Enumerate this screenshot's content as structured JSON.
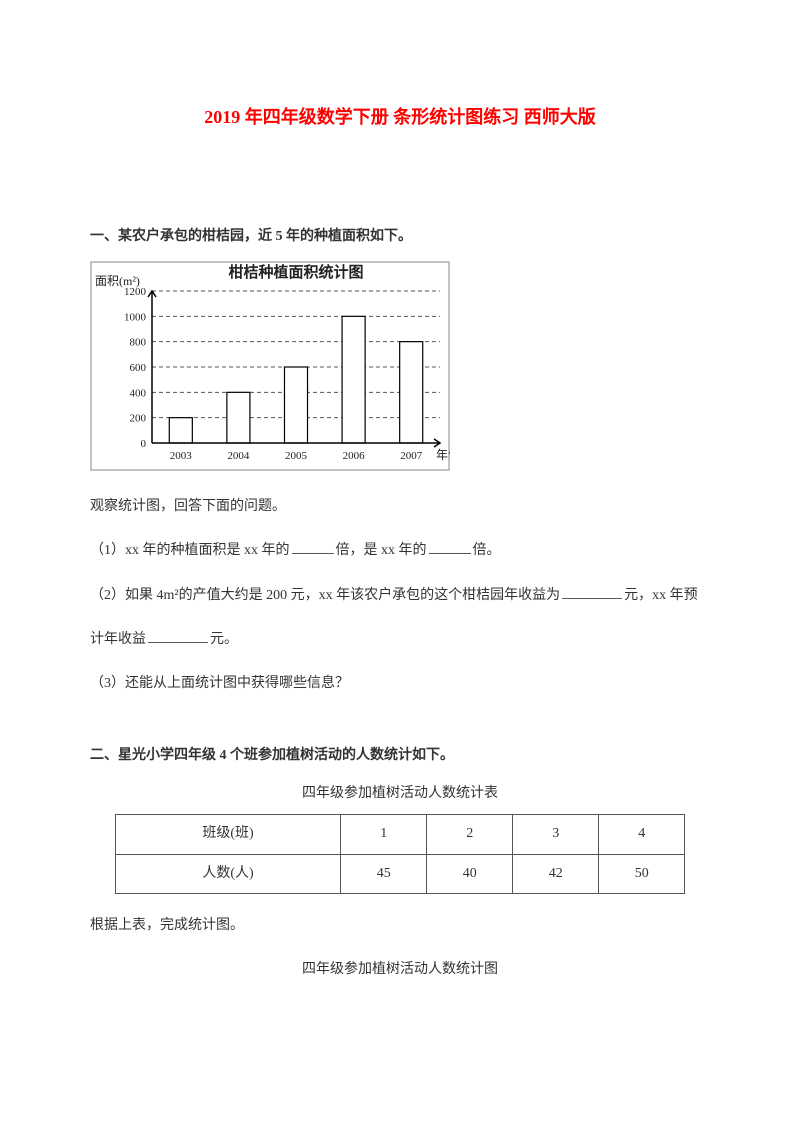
{
  "title": "2019 年四年级数学下册 条形统计图练习 西师大版",
  "section1": {
    "heading": "一、某农户承包的柑桔园，近 5 年的种植面积如下。",
    "chart": {
      "type": "bar",
      "title": "柑桔种植面积统计图",
      "ylabel": "面积(m²)",
      "xlabel": "年份(年)",
      "categories": [
        "2003",
        "2004",
        "2005",
        "2006",
        "2007"
      ],
      "values": [
        200,
        400,
        600,
        1000,
        800
      ],
      "ylim": [
        0,
        1200
      ],
      "yticks": [
        0,
        200,
        400,
        600,
        800,
        1000,
        1200
      ],
      "bar_color": "#ffffff",
      "bar_stroke": "#000000",
      "grid_color": "#555555",
      "background_color": "#ffffff",
      "axis_color": "#000000",
      "text_color": "#222222",
      "title_fontsize": 15,
      "label_fontsize": 12,
      "tick_fontsize": 11,
      "bar_width_ratio": 0.4,
      "grid_dash": "4,3"
    },
    "observe": "观察统计图，回答下面的问题。",
    "q1_a": "（1）xx 年的种植面积是 xx 年的",
    "q1_b": "倍，是 xx 年的",
    "q1_c": "倍。",
    "q2_a": "（2）如果 4m²的产值大约是 200 元，xx 年该农户承包的这个柑桔园年收益为",
    "q2_b": "元，xx 年预",
    "q2_c": "计年收益",
    "q2_d": "元。",
    "q3": "（3）还能从上面统计图中获得哪些信息？"
  },
  "section2": {
    "heading": "二、星光小学四年级 4 个班参加植树活动的人数统计如下。",
    "table_caption": "四年级参加植树活动人数统计表",
    "table": {
      "col_header": "班级(班)",
      "row_header": "人数(人)",
      "classes": [
        "1",
        "2",
        "3",
        "4"
      ],
      "counts": [
        "45",
        "40",
        "42",
        "50"
      ]
    },
    "after_table": "根据上表，完成统计图。",
    "chart_caption": "四年级参加植树活动人数统计图"
  }
}
